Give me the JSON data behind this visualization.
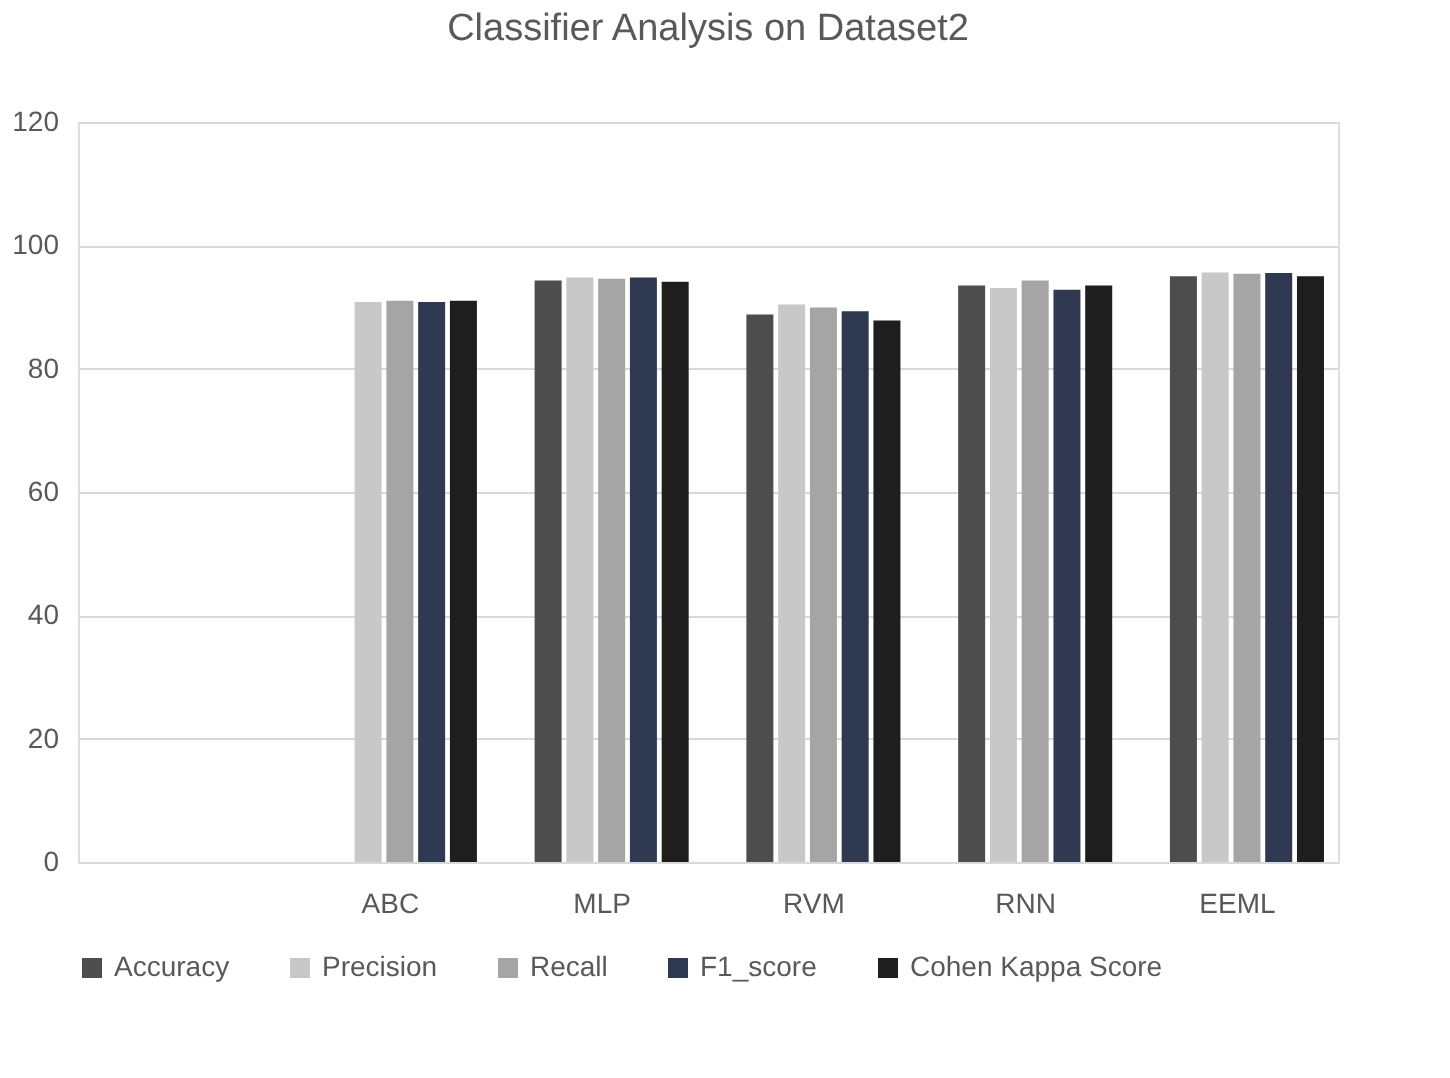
{
  "chart_data": {
    "type": "bar",
    "title": "Classifier Analysis on Dataset2",
    "categories": [
      null,
      "ABC",
      "MLP",
      "RVM",
      "RNN",
      "EEML"
    ],
    "series": [
      {
        "name": "Accuracy",
        "color": "#4d4d4d",
        "values": [
          null,
          null,
          94.3,
          88.8,
          93.5,
          95
        ]
      },
      {
        "name": "Precision",
        "color": "#c8c8c8",
        "values": [
          null,
          90.8,
          94.8,
          90.4,
          93.1,
          95.6
        ]
      },
      {
        "name": "Recall",
        "color": "#a5a5a5",
        "values": [
          null,
          91,
          94.6,
          89.9,
          94.3,
          95.4
        ]
      },
      {
        "name": "F1_score",
        "color": "#2f3a52",
        "values": [
          null,
          90.8,
          94.8,
          89.3,
          92.8,
          95.5
        ]
      },
      {
        "name": "Cohen Kappa Score",
        "color": "#1e1e1e",
        "values": [
          null,
          91,
          94.1,
          87.8,
          93.5,
          95
        ]
      }
    ],
    "ylim": [
      0,
      120
    ],
    "yticks": [
      0,
      20,
      40,
      60,
      80,
      100,
      120
    ],
    "grid": "y",
    "legend": "bottom"
  }
}
